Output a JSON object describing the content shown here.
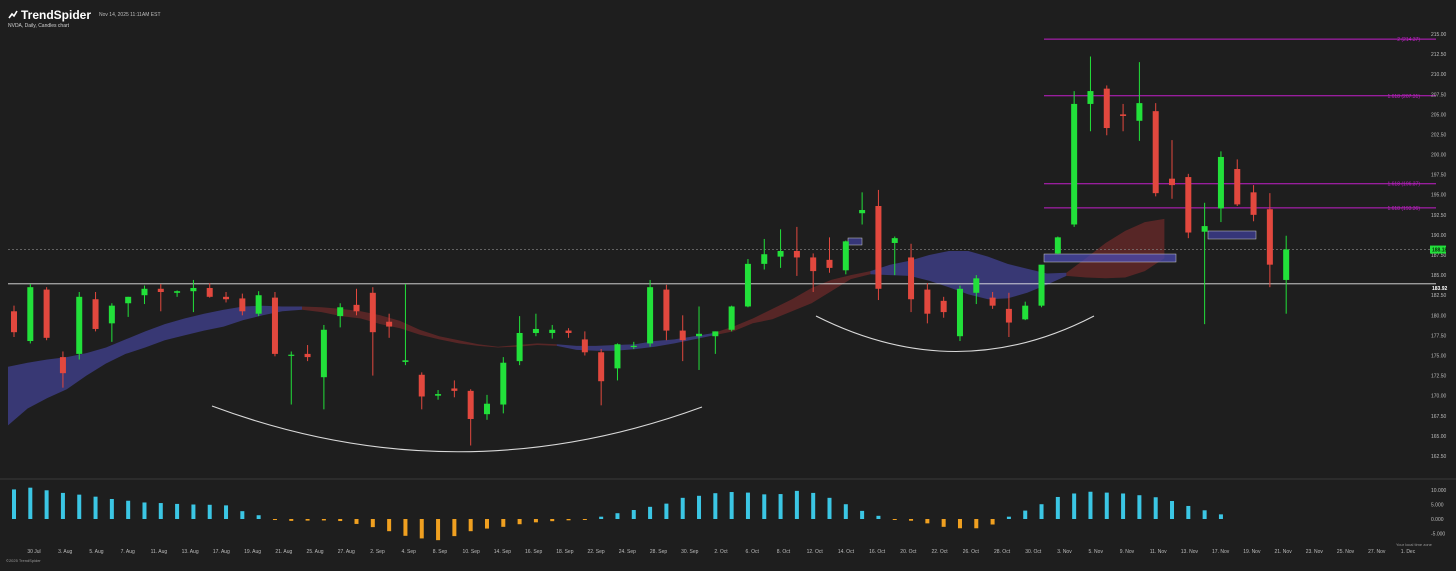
{
  "header": {
    "brand": "TrendSpider",
    "timestamp": "Nov 14, 2025 11:11AM EST",
    "subtitle": "NVDA, Daily, Candles chart",
    "copyright": "©2025 TrendSpider",
    "timezone_note": "Your local time zone"
  },
  "colors": {
    "background": "#1e1e1e",
    "bull": "#22e03a",
    "bear": "#e2483e",
    "cloud_blue": "#3e3f8a",
    "cloud_red": "#6e2a2a",
    "fib": "#c21fc8",
    "osc_pos": "#3bc6e4",
    "osc_neg": "#f0a020",
    "axis_text": "#bdbdbd"
  },
  "chart_data": [
    {
      "type": "candlestick",
      "ylim": [
        161.5,
        215.0
      ],
      "y_ticks": [
        "162.50",
        "165.00",
        "167.50",
        "170.00",
        "172.50",
        "175.00",
        "177.50",
        "180.00",
        "182.50",
        "185.00",
        "187.50",
        "190.00",
        "192.50",
        "195.00",
        "197.50",
        "200.00",
        "202.50",
        "205.00",
        "207.50",
        "210.00",
        "212.50",
        "215.00"
      ],
      "x_ticks": [
        "30 Jul",
        "3. Aug",
        "5. Aug",
        "7. Aug",
        "11. Aug",
        "13. Aug",
        "17. Aug",
        "19. Aug",
        "21. Aug",
        "25. Aug",
        "27. Aug",
        "2. Sep",
        "4. Sep",
        "8. Sep",
        "10. Sep",
        "14. Sep",
        "16. Sep",
        "18. Sep",
        "22. Sep",
        "24. Sep",
        "28. Sep",
        "30. Sep",
        "2. Oct",
        "6. Oct",
        "8. Oct",
        "12. Oct",
        "14. Oct",
        "16. Oct",
        "20. Oct",
        "22. Oct",
        "26. Oct",
        "28. Oct",
        "30. Oct",
        "3. Nov",
        "5. Nov",
        "9. Nov",
        "11. Nov",
        "13. Nov",
        "17. Nov",
        "19. Nov",
        "21. Nov",
        "23. Nov",
        "25. Nov",
        "27. Nov",
        "1. Dec"
      ],
      "candles": [
        {
          "o": 180.5,
          "h": 181.2,
          "l": 177.3,
          "c": 177.9
        },
        {
          "o": 176.8,
          "h": 183.9,
          "l": 176.5,
          "c": 183.5
        },
        {
          "o": 183.2,
          "h": 183.5,
          "l": 176.9,
          "c": 177.2
        },
        {
          "o": 174.8,
          "h": 175.5,
          "l": 171.0,
          "c": 172.8
        },
        {
          "o": 175.2,
          "h": 182.9,
          "l": 174.5,
          "c": 182.3
        },
        {
          "o": 182.0,
          "h": 182.9,
          "l": 178.0,
          "c": 178.3
        },
        {
          "o": 179.0,
          "h": 181.5,
          "l": 176.7,
          "c": 181.2
        },
        {
          "o": 181.5,
          "h": 182.3,
          "l": 179.8,
          "c": 182.3
        },
        {
          "o": 182.5,
          "h": 183.7,
          "l": 181.4,
          "c": 183.3
        },
        {
          "o": 183.3,
          "h": 183.9,
          "l": 180.5,
          "c": 182.9
        },
        {
          "o": 182.8,
          "h": 183.1,
          "l": 182.3,
          "c": 183.0
        },
        {
          "o": 183.0,
          "h": 184.4,
          "l": 180.4,
          "c": 183.4
        },
        {
          "o": 183.4,
          "h": 184.0,
          "l": 182.2,
          "c": 182.3
        },
        {
          "o": 182.3,
          "h": 182.9,
          "l": 181.6,
          "c": 182.0
        },
        {
          "o": 182.1,
          "h": 182.7,
          "l": 180.0,
          "c": 180.5
        },
        {
          "o": 180.2,
          "h": 183.0,
          "l": 179.9,
          "c": 182.5
        },
        {
          "o": 182.2,
          "h": 182.9,
          "l": 174.9,
          "c": 175.2
        },
        {
          "o": 175.0,
          "h": 175.5,
          "l": 168.9,
          "c": 175.1
        },
        {
          "o": 175.2,
          "h": 176.3,
          "l": 174.3,
          "c": 174.8
        },
        {
          "o": 172.3,
          "h": 178.8,
          "l": 168.3,
          "c": 178.2
        },
        {
          "o": 179.9,
          "h": 181.5,
          "l": 178.5,
          "c": 181.0
        },
        {
          "o": 181.3,
          "h": 183.3,
          "l": 180.0,
          "c": 180.5
        },
        {
          "o": 182.8,
          "h": 183.5,
          "l": 172.5,
          "c": 177.9
        },
        {
          "o": 179.2,
          "h": 180.2,
          "l": 177.2,
          "c": 178.6
        },
        {
          "o": 174.2,
          "h": 183.9,
          "l": 173.8,
          "c": 174.4
        },
        {
          "o": 172.6,
          "h": 172.9,
          "l": 168.3,
          "c": 169.9
        },
        {
          "o": 170.0,
          "h": 170.7,
          "l": 169.5,
          "c": 170.2
        },
        {
          "o": 170.9,
          "h": 171.9,
          "l": 169.8,
          "c": 170.6
        },
        {
          "o": 170.6,
          "h": 170.8,
          "l": 163.8,
          "c": 167.1
        },
        {
          "o": 167.7,
          "h": 170.1,
          "l": 167.0,
          "c": 169.0
        },
        {
          "o": 168.9,
          "h": 174.8,
          "l": 167.8,
          "c": 174.1
        },
        {
          "o": 174.3,
          "h": 179.9,
          "l": 173.8,
          "c": 177.8
        },
        {
          "o": 177.8,
          "h": 180.2,
          "l": 177.4,
          "c": 178.3
        },
        {
          "o": 177.8,
          "h": 178.8,
          "l": 177.1,
          "c": 178.2
        },
        {
          "o": 178.1,
          "h": 178.4,
          "l": 177.2,
          "c": 177.8
        },
        {
          "o": 177.0,
          "h": 178.0,
          "l": 175.0,
          "c": 175.4
        },
        {
          "o": 175.4,
          "h": 175.8,
          "l": 168.8,
          "c": 171.8
        },
        {
          "o": 173.4,
          "h": 176.5,
          "l": 171.9,
          "c": 176.4
        },
        {
          "o": 176.2,
          "h": 176.7,
          "l": 175.8,
          "c": 176.2
        },
        {
          "o": 176.5,
          "h": 184.4,
          "l": 176.1,
          "c": 183.5
        },
        {
          "o": 183.2,
          "h": 183.8,
          "l": 176.9,
          "c": 178.1
        },
        {
          "o": 178.1,
          "h": 180.0,
          "l": 174.3,
          "c": 176.9
        },
        {
          "o": 177.4,
          "h": 181.1,
          "l": 173.2,
          "c": 177.7
        },
        {
          "o": 177.4,
          "h": 178.0,
          "l": 175.2,
          "c": 178.0
        },
        {
          "o": 178.2,
          "h": 181.2,
          "l": 178.0,
          "c": 181.1
        },
        {
          "o": 181.1,
          "h": 187.0,
          "l": 181.0,
          "c": 186.4
        },
        {
          "o": 186.4,
          "h": 189.5,
          "l": 185.7,
          "c": 187.6
        },
        {
          "o": 187.3,
          "h": 190.7,
          "l": 185.9,
          "c": 188.0
        },
        {
          "o": 188.0,
          "h": 191.0,
          "l": 184.9,
          "c": 187.2
        },
        {
          "o": 187.2,
          "h": 187.7,
          "l": 182.9,
          "c": 185.5
        },
        {
          "o": 186.9,
          "h": 189.7,
          "l": 185.3,
          "c": 185.9
        },
        {
          "o": 185.6,
          "h": 189.3,
          "l": 185.1,
          "c": 189.2
        },
        {
          "o": 192.7,
          "h": 195.3,
          "l": 191.3,
          "c": 193.1
        },
        {
          "o": 193.6,
          "h": 195.6,
          "l": 181.9,
          "c": 183.3
        },
        {
          "o": 189.0,
          "h": 189.8,
          "l": 185.0,
          "c": 189.6
        },
        {
          "o": 187.2,
          "h": 188.9,
          "l": 180.4,
          "c": 182.0
        },
        {
          "o": 183.2,
          "h": 184.0,
          "l": 179.0,
          "c": 180.2
        },
        {
          "o": 181.8,
          "h": 182.3,
          "l": 179.7,
          "c": 180.4
        },
        {
          "o": 177.4,
          "h": 183.7,
          "l": 176.8,
          "c": 183.3
        },
        {
          "o": 182.8,
          "h": 185.0,
          "l": 181.4,
          "c": 184.6
        },
        {
          "o": 182.2,
          "h": 182.9,
          "l": 180.8,
          "c": 181.2
        },
        {
          "o": 180.8,
          "h": 182.8,
          "l": 177.3,
          "c": 179.1
        },
        {
          "o": 179.5,
          "h": 181.7,
          "l": 179.4,
          "c": 181.2
        },
        {
          "o": 181.2,
          "h": 186.1,
          "l": 181.0,
          "c": 186.3
        },
        {
          "o": 187.7,
          "h": 189.8,
          "l": 187.6,
          "c": 189.7
        },
        {
          "o": 191.3,
          "h": 207.9,
          "l": 191.0,
          "c": 206.3
        },
        {
          "o": 206.3,
          "h": 212.2,
          "l": 202.9,
          "c": 207.9
        },
        {
          "o": 208.2,
          "h": 208.6,
          "l": 202.4,
          "c": 203.3
        },
        {
          "o": 205.0,
          "h": 206.3,
          "l": 202.9,
          "c": 204.8
        },
        {
          "o": 204.2,
          "h": 211.5,
          "l": 201.7,
          "c": 206.4
        },
        {
          "o": 205.4,
          "h": 206.4,
          "l": 194.8,
          "c": 195.2
        },
        {
          "o": 197.0,
          "h": 201.8,
          "l": 194.5,
          "c": 196.2
        },
        {
          "o": 197.2,
          "h": 197.6,
          "l": 189.6,
          "c": 190.3
        },
        {
          "o": 190.4,
          "h": 194.0,
          "l": 178.9,
          "c": 191.1
        },
        {
          "o": 193.3,
          "h": 200.4,
          "l": 191.6,
          "c": 199.7
        },
        {
          "o": 198.2,
          "h": 199.4,
          "l": 193.6,
          "c": 193.8
        },
        {
          "o": 195.3,
          "h": 196.2,
          "l": 191.7,
          "c": 192.5
        },
        {
          "o": 193.2,
          "h": 195.2,
          "l": 183.5,
          "c": 186.3
        },
        {
          "o": 184.4,
          "h": 189.9,
          "l": 180.2,
          "c": 188.2
        }
      ],
      "cloud_upper": [
        173.6,
        174.1,
        174.5,
        174.8,
        175.3,
        176.0,
        177.0,
        178.0,
        178.9,
        179.6,
        180.2,
        180.7,
        181.1,
        181.2,
        181.1,
        180.7,
        180.4,
        179.9,
        179.6,
        178.9,
        178.4,
        177.6,
        177.0,
        176.5,
        176.2,
        176.0,
        176.1,
        176.3,
        176.4,
        176.2,
        176.2,
        176.3,
        176.4,
        176.8,
        177.0,
        177.4,
        177.5,
        178.0,
        179.0,
        179.5,
        180.5,
        181.5,
        183.0,
        184.5,
        185.5,
        186.3,
        186.8,
        187.5,
        188.0,
        188.0,
        187.3,
        186.4,
        185.8,
        185.2,
        184.9,
        184.7,
        184.6,
        184.7,
        185.5,
        187.1,
        189.5,
        191.5,
        193.5,
        195.5,
        196.8,
        197.5,
        198.0,
        198.2,
        196.0
      ],
      "cloud_lower": [
        166.3,
        168.4,
        169.7,
        170.8,
        172.5,
        174.0,
        175.2,
        176.0,
        176.9,
        177.5,
        178.1,
        178.6,
        179.4,
        180.0,
        180.5,
        181.1,
        181.0,
        180.8,
        180.5,
        180.0,
        179.3,
        178.2,
        177.4,
        176.9,
        176.4,
        176.1,
        176.3,
        176.5,
        176.2,
        175.7,
        175.6,
        175.6,
        175.8,
        176.1,
        176.5,
        177.0,
        177.8,
        178.6,
        179.6,
        180.8,
        182.0,
        183.4,
        184.4,
        185.0,
        185.1,
        185.0,
        184.9,
        184.3,
        183.5,
        182.6,
        182.0,
        182.1,
        182.8,
        183.8,
        185.3,
        187.1,
        189.0,
        190.5,
        191.6,
        192.0
      ],
      "fib_levels": [
        {
          "label": "2 (214.37)",
          "value": 214.37
        },
        {
          "label": "1.618 (207.31)",
          "value": 207.31
        },
        {
          "label": "1.618 (196.37)",
          "value": 196.37
        },
        {
          "label": "1.618 (193.36)",
          "value": 193.36
        }
      ],
      "price_tag": "188.18",
      "price_value": 188.18,
      "support_tag": "183.92",
      "support_value": 183.92
    },
    {
      "type": "bar",
      "name": "Oscillator",
      "ylim": [
        -6500,
        12000
      ],
      "y_ticks": [
        "10.000",
        "5.000",
        "0.000",
        "-5.000"
      ],
      "y_tick_values": [
        10000,
        5000,
        0,
        -5000
      ],
      "values": [
        10200,
        10800,
        9900,
        9000,
        8400,
        7700,
        6900,
        6300,
        5700,
        5500,
        5200,
        5000,
        4900,
        4700,
        2700,
        1300,
        -350,
        -650,
        -550,
        -500,
        -700,
        -1700,
        -2800,
        -4200,
        -5800,
        -6700,
        -7300,
        -5900,
        -4200,
        -3300,
        -2700,
        -1800,
        -1150,
        -750,
        -450,
        -100,
        800,
        2000,
        3100,
        4200,
        5300,
        7300,
        8000,
        8900,
        9300,
        9100,
        8500,
        8600,
        9700,
        9000,
        7300,
        5100,
        2800,
        1100,
        -300,
        -600,
        -1500,
        -2700,
        -3200,
        -3200,
        -1900,
        800,
        2900,
        5100,
        7600,
        8800,
        9400,
        9100,
        8800,
        8200,
        7500,
        6200,
        4500,
        3000,
        1600
      ]
    }
  ]
}
